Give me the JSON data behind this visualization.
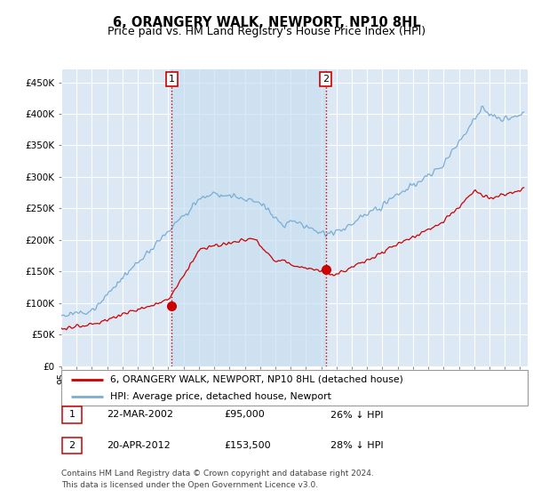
{
  "title": "6, ORANGERY WALK, NEWPORT, NP10 8HL",
  "subtitle": "Price paid vs. HM Land Registry's House Price Index (HPI)",
  "ylabel_ticks": [
    "£0",
    "£50K",
    "£100K",
    "£150K",
    "£200K",
    "£250K",
    "£300K",
    "£350K",
    "£400K",
    "£450K"
  ],
  "ytick_vals": [
    0,
    50000,
    100000,
    150000,
    200000,
    250000,
    300000,
    350000,
    400000,
    450000
  ],
  "ylim": [
    0,
    470000
  ],
  "xlim_start": 1995.0,
  "xlim_end": 2025.5,
  "background_color": "#dce9f5",
  "grid_color": "#ffffff",
  "red_line_color": "#cc0000",
  "blue_line_color": "#7aadd4",
  "shade_color": "#c8dff0",
  "purchase1_x": 2002.22,
  "purchase1_y": 95000,
  "purchase1_label": "1",
  "purchase2_x": 2012.3,
  "purchase2_y": 153500,
  "purchase2_label": "2",
  "vline_color": "#cc0000",
  "marker_color": "#cc0000",
  "legend_label_red": "6, ORANGERY WALK, NEWPORT, NP10 8HL (detached house)",
  "legend_label_blue": "HPI: Average price, detached house, Newport",
  "table_row1": [
    "1",
    "22-MAR-2002",
    "£95,000",
    "26% ↓ HPI"
  ],
  "table_row2": [
    "2",
    "20-APR-2012",
    "£153,500",
    "28% ↓ HPI"
  ],
  "footer": "Contains HM Land Registry data © Crown copyright and database right 2024.\nThis data is licensed under the Open Government Licence v3.0.",
  "title_fontsize": 10.5,
  "subtitle_fontsize": 9,
  "axis_fontsize": 7.5
}
